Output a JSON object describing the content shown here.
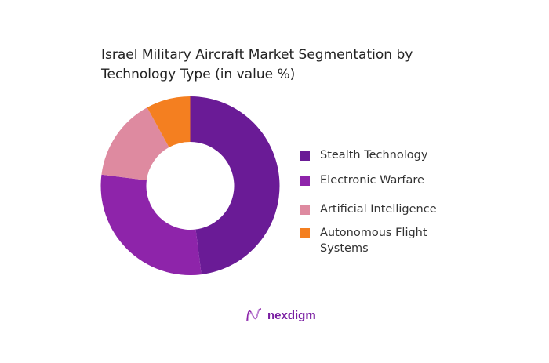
{
  "chart_data": {
    "type": "pie",
    "variant": "donut",
    "title": "Israel Military Aircraft Market Segmentation by Technology Type (in value %)",
    "title_lines": [
      "Israel Military Aircraft Market Segmentation by",
      "Technology Type (in value %)"
    ],
    "categories": [
      "Stealth Technology",
      "Electronic Warfare",
      "Artificial Intelligence",
      "Autonomous Flight Systems"
    ],
    "legend_lines": [
      [
        "Stealth Technology"
      ],
      [
        "Electronic Warfare"
      ],
      [
        "Artificial Intelligence"
      ],
      [
        "Autonomous Flight",
        "Systems"
      ]
    ],
    "values": [
      48,
      29,
      15,
      8
    ],
    "colors": [
      "#6a1b96",
      "#8e24aa",
      "#de8aa0",
      "#f47f20"
    ],
    "legend_position": "right"
  },
  "brand": {
    "name": "nexdigm"
  }
}
